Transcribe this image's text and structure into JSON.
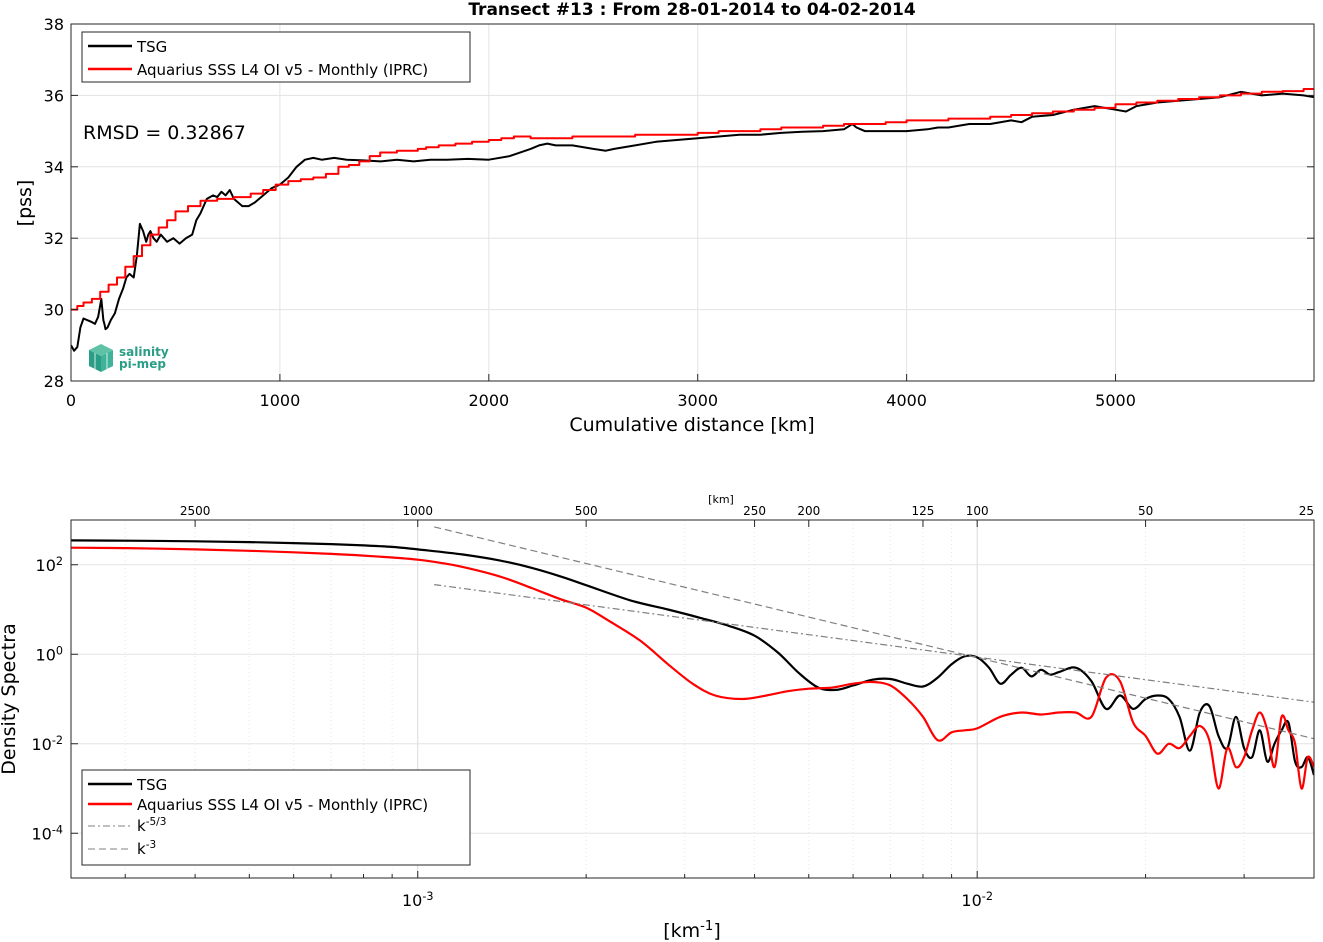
{
  "chart_data": [
    {
      "type": "line",
      "title": "Transect #13 : From 28-01-2014 to 04-02-2014",
      "xlabel": "Cumulative distance [km]",
      "ylabel": "[pss]",
      "xlim": [
        0,
        5950
      ],
      "ylim": [
        28,
        38
      ],
      "xticks": [
        0,
        1000,
        2000,
        3000,
        4000,
        5000
      ],
      "yticks": [
        28,
        30,
        32,
        34,
        36,
        38
      ],
      "grid": true,
      "legend_position": "top-left",
      "annotation": "RMSD = 0.32867",
      "logo": {
        "line1": "salinity",
        "line2": "pi-mep"
      },
      "series": [
        {
          "name": "TSG",
          "color": "#000000",
          "x": [
            0,
            15,
            30,
            45,
            60,
            80,
            100,
            115,
            130,
            145,
            155,
            160,
            165,
            175,
            190,
            210,
            230,
            250,
            265,
            280,
            300,
            315,
            330,
            345,
            360,
            370,
            380,
            395,
            410,
            430,
            460,
            490,
            520,
            550,
            580,
            600,
            620,
            650,
            680,
            700,
            720,
            740,
            760,
            780,
            800,
            820,
            850,
            880,
            920,
            960,
            1000,
            1040,
            1080,
            1120,
            1160,
            1200,
            1260,
            1320,
            1400,
            1480,
            1560,
            1640,
            1720,
            1800,
            1900,
            2000,
            2100,
            2200,
            2240,
            2280,
            2320,
            2400,
            2500,
            2560,
            2600,
            2700,
            2800,
            2900,
            3000,
            3100,
            3200,
            3300,
            3400,
            3500,
            3600,
            3700,
            3740,
            3760,
            3780,
            3800,
            3900,
            4000,
            4100,
            4150,
            4200,
            4300,
            4400,
            4500,
            4550,
            4600,
            4700,
            4800,
            4900,
            5000,
            5050,
            5100,
            5200,
            5300,
            5400,
            5500,
            5600,
            5650,
            5700,
            5800,
            5900,
            5950
          ],
          "y": [
            29.0,
            28.85,
            28.95,
            29.5,
            29.75,
            29.7,
            29.65,
            29.6,
            29.8,
            30.3,
            29.7,
            29.6,
            29.45,
            29.5,
            29.7,
            29.9,
            30.3,
            30.6,
            30.9,
            31.0,
            30.9,
            31.5,
            32.4,
            32.2,
            31.9,
            32.1,
            32.2,
            32.0,
            31.9,
            32.1,
            31.9,
            32.0,
            31.85,
            32.0,
            32.1,
            32.5,
            32.7,
            33.1,
            33.2,
            33.15,
            33.3,
            33.2,
            33.35,
            33.1,
            33.0,
            32.9,
            32.9,
            33.0,
            33.2,
            33.4,
            33.5,
            33.7,
            34.0,
            34.2,
            34.25,
            34.2,
            34.25,
            34.2,
            34.18,
            34.15,
            34.2,
            34.15,
            34.2,
            34.2,
            34.22,
            34.2,
            34.3,
            34.5,
            34.6,
            34.65,
            34.6,
            34.6,
            34.5,
            34.45,
            34.5,
            34.6,
            34.7,
            34.75,
            34.8,
            34.85,
            34.9,
            34.9,
            34.95,
            34.98,
            35.0,
            35.05,
            35.2,
            35.1,
            35.05,
            35.0,
            35.0,
            35.0,
            35.05,
            35.1,
            35.1,
            35.2,
            35.2,
            35.3,
            35.25,
            35.4,
            35.45,
            35.6,
            35.7,
            35.6,
            35.55,
            35.7,
            35.8,
            35.85,
            35.9,
            35.95,
            36.1,
            36.05,
            36.0,
            36.05,
            36.0,
            35.95
          ]
        },
        {
          "name": "Aquarius SSS L4 OI v5 - Monthly (IPRC)",
          "color": "#ff0000",
          "step": true,
          "x": [
            0,
            30,
            60,
            100,
            140,
            180,
            220,
            260,
            300,
            340,
            380,
            420,
            460,
            500,
            560,
            620,
            700,
            780,
            860,
            920,
            980,
            1040,
            1100,
            1160,
            1220,
            1280,
            1330,
            1380,
            1430,
            1480,
            1560,
            1660,
            1700,
            1760,
            1840,
            1920,
            2000,
            2060,
            2120,
            2200,
            2300,
            2400,
            2500,
            2600,
            2700,
            2800,
            2900,
            3000,
            3100,
            3200,
            3300,
            3400,
            3500,
            3600,
            3700,
            3800,
            3900,
            4000,
            4100,
            4200,
            4300,
            4400,
            4500,
            4600,
            4700,
            4800,
            4900,
            5000,
            5100,
            5200,
            5300,
            5400,
            5500,
            5600,
            5700,
            5800,
            5900,
            5950
          ],
          "y": [
            30.0,
            30.1,
            30.2,
            30.3,
            30.5,
            30.7,
            30.9,
            31.2,
            31.5,
            31.8,
            32.1,
            32.3,
            32.5,
            32.75,
            32.9,
            33.05,
            33.1,
            33.15,
            33.25,
            33.35,
            33.5,
            33.6,
            33.65,
            33.7,
            33.8,
            34.0,
            34.05,
            34.15,
            34.3,
            34.4,
            34.45,
            34.5,
            34.55,
            34.6,
            34.65,
            34.7,
            34.75,
            34.8,
            34.85,
            34.8,
            34.8,
            34.85,
            34.85,
            34.85,
            34.9,
            34.9,
            34.9,
            34.95,
            35.0,
            35.0,
            35.05,
            35.1,
            35.1,
            35.15,
            35.2,
            35.2,
            35.25,
            35.3,
            35.3,
            35.35,
            35.35,
            35.4,
            35.45,
            35.5,
            35.55,
            35.6,
            35.65,
            35.75,
            35.8,
            35.85,
            35.9,
            35.95,
            36.0,
            36.05,
            36.1,
            36.12,
            36.18,
            36.2
          ]
        }
      ]
    },
    {
      "type": "line",
      "xscale": "log",
      "yscale": "log",
      "xlabel": "[km⁻¹]",
      "ylabel": "Density Spectra",
      "top_axis_label": "[km]",
      "top_ticks": [
        "2500",
        "1000",
        "500",
        "250",
        "200",
        "125",
        "100",
        "50",
        "25"
      ],
      "xlim": [
        0.00024,
        0.04
      ],
      "ylim": [
        1e-05,
        1000
      ],
      "grid": true,
      "legend_position": "bottom-left",
      "series": [
        {
          "name": "TSG",
          "color": "#000000",
          "x": [
            0.00024,
            0.0003,
            0.0004,
            0.0005,
            0.0006,
            0.0007,
            0.0008,
            0.0009,
            0.001,
            0.0012,
            0.0014,
            0.0016,
            0.0018,
            0.002,
            0.0024,
            0.0028,
            0.0032,
            0.0036,
            0.004,
            0.0044,
            0.0048,
            0.0052,
            0.0056,
            0.006,
            0.0065,
            0.007,
            0.0075,
            0.008,
            0.0085,
            0.009,
            0.0095,
            0.01,
            0.0105,
            0.011,
            0.0115,
            0.012,
            0.0125,
            0.013,
            0.0135,
            0.014,
            0.015,
            0.016,
            0.017,
            0.018,
            0.019,
            0.02,
            0.021,
            0.022,
            0.023,
            0.024,
            0.025,
            0.026,
            0.027,
            0.028,
            0.029,
            0.03,
            0.031,
            0.032,
            0.033,
            0.034,
            0.035,
            0.036,
            0.037,
            0.038,
            0.039,
            0.04
          ],
          "y": [
            350,
            345,
            335,
            320,
            305,
            290,
            270,
            250,
            220,
            170,
            125,
            85,
            55,
            35,
            16,
            10,
            6.5,
            4.3,
            2.6,
            1.1,
            0.38,
            0.18,
            0.16,
            0.2,
            0.27,
            0.28,
            0.22,
            0.19,
            0.3,
            0.6,
            0.9,
            0.85,
            0.5,
            0.22,
            0.35,
            0.5,
            0.32,
            0.45,
            0.35,
            0.4,
            0.5,
            0.25,
            0.06,
            0.12,
            0.06,
            0.1,
            0.12,
            0.1,
            0.04,
            0.007,
            0.05,
            0.07,
            0.015,
            0.008,
            0.04,
            0.008,
            0.005,
            0.02,
            0.004,
            0.01,
            0.02,
            0.03,
            0.004,
            0.003,
            0.005,
            0.002
          ]
        },
        {
          "name": "Aquarius SSS L4 OI v5 - Monthly (IPRC)",
          "color": "#ff0000",
          "x": [
            0.00024,
            0.0003,
            0.0004,
            0.0005,
            0.0006,
            0.0007,
            0.0008,
            0.0009,
            0.001,
            0.0011,
            0.0012,
            0.0014,
            0.0016,
            0.0018,
            0.002,
            0.0022,
            0.0025,
            0.0028,
            0.0031,
            0.0034,
            0.0038,
            0.0042,
            0.0046,
            0.005,
            0.0055,
            0.006,
            0.0065,
            0.007,
            0.0075,
            0.008,
            0.0085,
            0.009,
            0.0095,
            0.01,
            0.011,
            0.012,
            0.013,
            0.014,
            0.015,
            0.016,
            0.017,
            0.018,
            0.019,
            0.02,
            0.021,
            0.022,
            0.023,
            0.024,
            0.025,
            0.026,
            0.027,
            0.028,
            0.029,
            0.03,
            0.031,
            0.032,
            0.033,
            0.034,
            0.035,
            0.036,
            0.037,
            0.038,
            0.039,
            0.04
          ],
          "y": [
            240,
            235,
            220,
            205,
            190,
            175,
            160,
            145,
            130,
            110,
            90,
            55,
            30,
            17,
            11,
            5.5,
            2,
            0.6,
            0.22,
            0.12,
            0.1,
            0.12,
            0.15,
            0.17,
            0.18,
            0.22,
            0.24,
            0.2,
            0.1,
            0.04,
            0.012,
            0.018,
            0.02,
            0.022,
            0.04,
            0.05,
            0.045,
            0.05,
            0.05,
            0.04,
            0.3,
            0.25,
            0.03,
            0.015,
            0.006,
            0.01,
            0.008,
            0.015,
            0.025,
            0.012,
            0.001,
            0.008,
            0.003,
            0.005,
            0.02,
            0.05,
            0.02,
            0.003,
            0.04,
            0.02,
            0.01,
            0.001,
            0.005,
            0.003
          ]
        },
        {
          "name": "k⁻⁵ᐟ³",
          "color": "#808080",
          "dash": "dashdot",
          "x": [
            0.00107,
            0.04
          ],
          "y": [
            36,
            0.085
          ]
        },
        {
          "name": "k⁻³",
          "color": "#808080",
          "dash": "dash",
          "x": [
            0.00107,
            0.04
          ],
          "y": [
            700,
            0.013
          ]
        }
      ]
    }
  ]
}
